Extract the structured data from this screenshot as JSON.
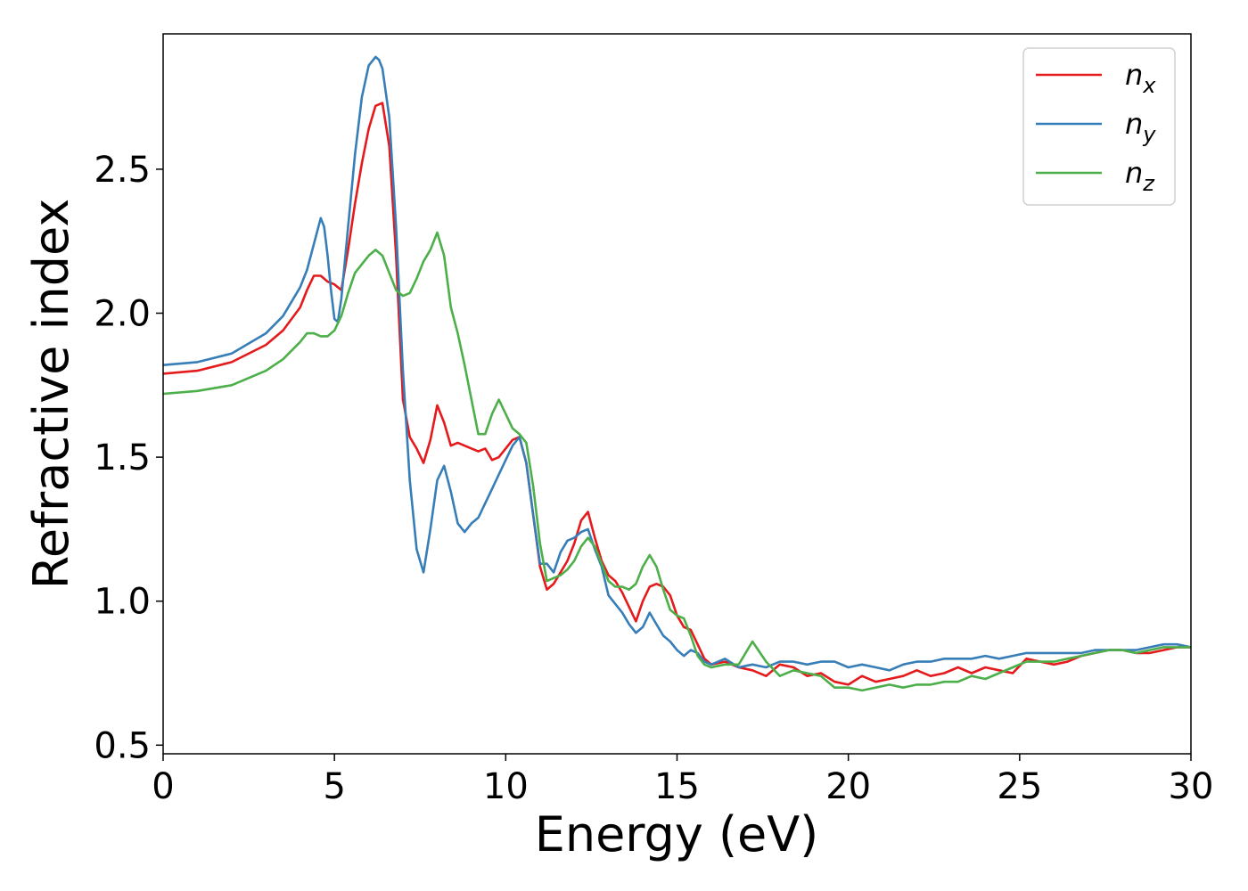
{
  "chart_data": {
    "type": "line",
    "title": "",
    "xlabel": "Energy (eV)",
    "ylabel": "Refractive index",
    "xlim": [
      0,
      30
    ],
    "ylim": [
      0.47,
      2.97
    ],
    "xticks": [
      0,
      5,
      10,
      15,
      20,
      25,
      30
    ],
    "xtick_labels": [
      "0",
      "5",
      "10",
      "15",
      "20",
      "25",
      "30"
    ],
    "yticks": [
      0.5,
      1.0,
      1.5,
      2.0,
      2.5
    ],
    "ytick_labels": [
      "0.5",
      "1.0",
      "1.5",
      "2.0",
      "2.5"
    ],
    "grid": false,
    "legend_position": "top-right",
    "series": [
      {
        "name": "n",
        "subscript": "x",
        "color": "#e41a1c",
        "x": [
          0,
          1,
          2,
          3,
          3.5,
          4,
          4.2,
          4.4,
          4.6,
          4.8,
          5.0,
          5.2,
          5.4,
          5.6,
          5.8,
          6.0,
          6.2,
          6.4,
          6.6,
          6.8,
          7.0,
          7.2,
          7.4,
          7.6,
          7.8,
          8.0,
          8.2,
          8.4,
          8.6,
          8.8,
          9.0,
          9.2,
          9.4,
          9.6,
          9.8,
          10.0,
          10.2,
          10.4,
          10.6,
          10.8,
          11.0,
          11.2,
          11.4,
          11.6,
          11.8,
          12.0,
          12.2,
          12.4,
          12.6,
          12.8,
          13.0,
          13.2,
          13.4,
          13.6,
          13.8,
          14.0,
          14.2,
          14.4,
          14.6,
          14.8,
          15.0,
          15.2,
          15.4,
          15.6,
          15.8,
          16.0,
          16.4,
          16.8,
          17.2,
          17.6,
          18.0,
          18.4,
          18.8,
          19.2,
          19.6,
          20.0,
          20.4,
          20.8,
          21.2,
          21.6,
          22.0,
          22.4,
          22.8,
          23.2,
          23.6,
          24.0,
          24.4,
          24.8,
          25.2,
          25.6,
          26.0,
          26.4,
          26.8,
          27.2,
          27.6,
          28.0,
          28.4,
          28.8,
          29.2,
          29.6,
          30.0
        ],
        "y": [
          1.79,
          1.8,
          1.83,
          1.89,
          1.94,
          2.02,
          2.08,
          2.13,
          2.13,
          2.11,
          2.1,
          2.08,
          2.22,
          2.38,
          2.52,
          2.64,
          2.72,
          2.73,
          2.58,
          2.2,
          1.7,
          1.57,
          1.53,
          1.48,
          1.56,
          1.68,
          1.62,
          1.54,
          1.55,
          1.54,
          1.53,
          1.52,
          1.53,
          1.49,
          1.5,
          1.53,
          1.56,
          1.57,
          1.48,
          1.3,
          1.12,
          1.04,
          1.06,
          1.1,
          1.14,
          1.2,
          1.28,
          1.31,
          1.22,
          1.14,
          1.09,
          1.07,
          1.03,
          0.98,
          0.93,
          1.0,
          1.05,
          1.06,
          1.05,
          1.02,
          0.95,
          0.91,
          0.9,
          0.85,
          0.8,
          0.78,
          0.79,
          0.77,
          0.76,
          0.74,
          0.78,
          0.77,
          0.74,
          0.75,
          0.72,
          0.71,
          0.74,
          0.72,
          0.73,
          0.74,
          0.76,
          0.74,
          0.75,
          0.77,
          0.75,
          0.77,
          0.76,
          0.75,
          0.8,
          0.79,
          0.78,
          0.79,
          0.81,
          0.82,
          0.83,
          0.83,
          0.82,
          0.82,
          0.83,
          0.84,
          0.84
        ]
      },
      {
        "name": "n",
        "subscript": "y",
        "color": "#377eb8",
        "x": [
          0,
          1,
          2,
          3,
          3.5,
          4,
          4.2,
          4.4,
          4.6,
          4.7,
          4.8,
          4.9,
          5.0,
          5.1,
          5.2,
          5.4,
          5.6,
          5.8,
          6.0,
          6.2,
          6.3,
          6.4,
          6.6,
          6.8,
          7.0,
          7.2,
          7.4,
          7.6,
          7.8,
          8.0,
          8.2,
          8.4,
          8.6,
          8.8,
          9.0,
          9.2,
          9.4,
          9.6,
          9.8,
          10.0,
          10.2,
          10.4,
          10.6,
          10.8,
          11.0,
          11.2,
          11.4,
          11.6,
          11.8,
          12.0,
          12.2,
          12.4,
          12.6,
          12.8,
          13.0,
          13.2,
          13.4,
          13.6,
          13.8,
          14.0,
          14.2,
          14.4,
          14.6,
          14.8,
          15.0,
          15.2,
          15.4,
          15.6,
          15.8,
          16.0,
          16.4,
          16.8,
          17.2,
          17.6,
          18.0,
          18.4,
          18.8,
          19.2,
          19.6,
          20.0,
          20.4,
          20.8,
          21.2,
          21.6,
          22.0,
          22.4,
          22.8,
          23.2,
          23.6,
          24.0,
          24.4,
          24.8,
          25.2,
          25.6,
          26.0,
          26.4,
          26.8,
          27.2,
          27.6,
          28.0,
          28.4,
          28.8,
          29.2,
          29.6,
          30.0
        ],
        "y": [
          1.82,
          1.83,
          1.86,
          1.93,
          1.99,
          2.09,
          2.15,
          2.24,
          2.33,
          2.3,
          2.2,
          2.08,
          1.98,
          1.97,
          2.05,
          2.3,
          2.55,
          2.75,
          2.86,
          2.89,
          2.88,
          2.85,
          2.68,
          2.3,
          1.8,
          1.42,
          1.18,
          1.1,
          1.25,
          1.42,
          1.47,
          1.38,
          1.27,
          1.24,
          1.27,
          1.29,
          1.34,
          1.39,
          1.44,
          1.49,
          1.54,
          1.57,
          1.48,
          1.3,
          1.13,
          1.13,
          1.1,
          1.17,
          1.21,
          1.22,
          1.24,
          1.25,
          1.18,
          1.12,
          1.02,
          0.99,
          0.96,
          0.92,
          0.89,
          0.91,
          0.96,
          0.92,
          0.88,
          0.86,
          0.83,
          0.81,
          0.83,
          0.82,
          0.79,
          0.78,
          0.8,
          0.77,
          0.78,
          0.77,
          0.79,
          0.79,
          0.78,
          0.79,
          0.79,
          0.77,
          0.78,
          0.77,
          0.76,
          0.78,
          0.79,
          0.79,
          0.8,
          0.8,
          0.8,
          0.81,
          0.8,
          0.81,
          0.82,
          0.82,
          0.82,
          0.82,
          0.82,
          0.83,
          0.83,
          0.83,
          0.83,
          0.84,
          0.85,
          0.85,
          0.84
        ]
      },
      {
        "name": "n",
        "subscript": "z",
        "color": "#4daf4a",
        "x": [
          0,
          1,
          2,
          3,
          3.5,
          4,
          4.2,
          4.4,
          4.6,
          4.8,
          5.0,
          5.2,
          5.4,
          5.6,
          5.8,
          6.0,
          6.2,
          6.4,
          6.6,
          6.8,
          7.0,
          7.2,
          7.4,
          7.6,
          7.8,
          8.0,
          8.2,
          8.4,
          8.6,
          8.8,
          9.0,
          9.2,
          9.4,
          9.6,
          9.8,
          10.0,
          10.2,
          10.4,
          10.6,
          10.8,
          11.0,
          11.2,
          11.4,
          11.6,
          11.8,
          12.0,
          12.2,
          12.4,
          12.6,
          12.8,
          13.0,
          13.2,
          13.4,
          13.6,
          13.8,
          14.0,
          14.2,
          14.4,
          14.6,
          14.8,
          15.0,
          15.2,
          15.4,
          15.6,
          15.8,
          16.0,
          16.4,
          16.8,
          17.2,
          17.6,
          18.0,
          18.4,
          18.8,
          19.2,
          19.6,
          20.0,
          20.4,
          20.8,
          21.2,
          21.6,
          22.0,
          22.4,
          22.8,
          23.2,
          23.6,
          24.0,
          24.4,
          24.8,
          25.2,
          25.6,
          26.0,
          26.4,
          26.8,
          27.2,
          27.6,
          28.0,
          28.4,
          28.8,
          29.2,
          29.6,
          30.0
        ],
        "y": [
          1.72,
          1.73,
          1.75,
          1.8,
          1.84,
          1.9,
          1.93,
          1.93,
          1.92,
          1.92,
          1.94,
          1.99,
          2.07,
          2.14,
          2.17,
          2.2,
          2.22,
          2.2,
          2.14,
          2.08,
          2.06,
          2.07,
          2.12,
          2.18,
          2.22,
          2.28,
          2.2,
          2.02,
          1.93,
          1.82,
          1.7,
          1.58,
          1.58,
          1.65,
          1.7,
          1.65,
          1.6,
          1.58,
          1.55,
          1.4,
          1.2,
          1.07,
          1.08,
          1.09,
          1.11,
          1.14,
          1.19,
          1.22,
          1.19,
          1.13,
          1.07,
          1.05,
          1.05,
          1.04,
          1.06,
          1.12,
          1.16,
          1.12,
          1.04,
          0.97,
          0.95,
          0.94,
          0.88,
          0.81,
          0.78,
          0.77,
          0.78,
          0.78,
          0.86,
          0.79,
          0.74,
          0.76,
          0.75,
          0.74,
          0.7,
          0.7,
          0.69,
          0.7,
          0.71,
          0.7,
          0.71,
          0.71,
          0.72,
          0.72,
          0.74,
          0.73,
          0.75,
          0.77,
          0.79,
          0.79,
          0.79,
          0.8,
          0.81,
          0.82,
          0.83,
          0.83,
          0.82,
          0.83,
          0.84,
          0.84,
          0.84
        ]
      }
    ]
  }
}
